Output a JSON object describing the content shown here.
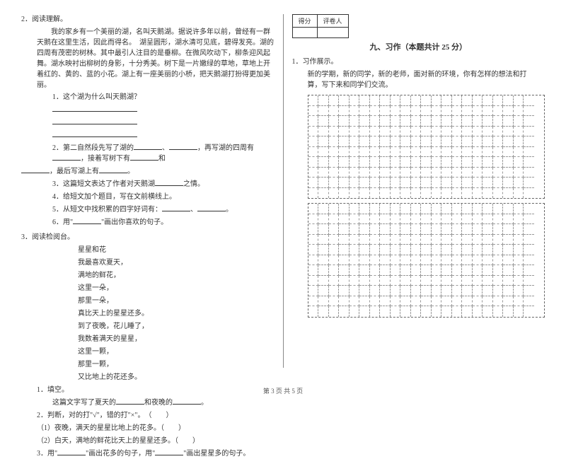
{
  "left": {
    "q2_title": "2．阅读理解。",
    "q2_para1": "我的家乡有一个美丽的湖，名叫天鹅湖。据说许多年以前，曾经有一群天鹅在这里生活，因此而得名。　湖呈圆形，湖水清可见底，碧得发亮。湖的四周有茂密的树林。其中最引人注目的是垂柳。在微风吹动下，柳条迎风起舞。湖水映衬出柳树的身影，十分秀美。树下是一片嫩绿的草地，草地上开着红的、黄的、蓝的小花。湖上有一座美丽的小桥，把天鹅湖打扮得更加美丽。",
    "q2_sub1": "1．这个湖为什么叫天鹅湖？",
    "q2_sub2a": "2．第二自然段先写了湖的",
    "q2_sub2b": "，再写湖的四周有",
    "q2_sub2c": "，接着写树下有",
    "q2_sub2d": "和",
    "q2_sub2e": "，最后写湖上有",
    "q2_sub3": "3．这篇短文表达了作者对天鹅湖",
    "q2_sub3b": "之情。",
    "q2_sub4": "4．给短文加个题目，写在文前横线上。",
    "q2_sub5": "5．从短文中找积累的四字好词有：",
    "q2_sub6": "6．用\"",
    "q2_sub6b": "\"画出你喜欢的句子。",
    "q3_title": "3．阅读检阅台。",
    "poem_title": "星星和花",
    "poem_l1": "我最喜欢夏天，",
    "poem_l2": "满地的鲜花，",
    "poem_l3": "这里一朵，",
    "poem_l4": "那里一朵，",
    "poem_l5": "真比天上的星星还多。",
    "poem_l6": "到了夜晚，花儿睡了，",
    "poem_l7": "我数着满天的星星，",
    "poem_l8": "这里一颗，",
    "poem_l9": "那里一颗，",
    "poem_l10": "又比地上的花还多。",
    "q3_sub1": "1．填空。",
    "q3_sub1a": "这篇文字写了夏天的",
    "q3_sub1b": "和夜晚的",
    "q3_sub2": "2．判断，对的打\"√\"，错的打\"×\"。　（　　）",
    "q3_sub2a": "（1）夜晚，满天的星星比地上的花多。（　　）",
    "q3_sub2b": "（2）白天，满地的鲜花比天上的星星还多。（　　）",
    "q3_sub3a": "3．用\"",
    "q3_sub3b": "\"画出花多的句子，用\"",
    "q3_sub3c": "\"画出星星多的句子。"
  },
  "right": {
    "score_label1": "得分",
    "score_label2": "评卷人",
    "section_title": "九、习作（本题共计 25 分）",
    "q1_title": "1．习作展示。",
    "q1_text": "新的学期，新的同学，新的老师，面对新的环境，你有怎样的想法和打　算，写下来和同学们交流。",
    "grid": {
      "cols": 22,
      "rows1": 10,
      "rows2": 11
    }
  },
  "footer": "第 3 页 共 5 页"
}
